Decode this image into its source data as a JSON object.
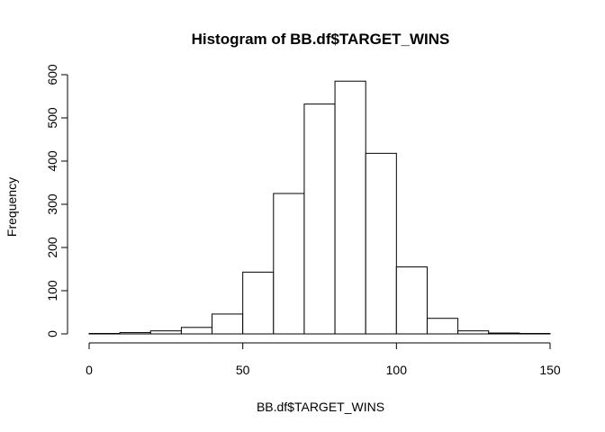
{
  "chart_data": {
    "type": "bar",
    "title": "Histogram of BB.df$TARGET_WINS",
    "xlabel": "BB.df$TARGET_WINS",
    "ylabel": "Frequency",
    "bins": [
      {
        "start": 0,
        "end": 10,
        "count": 1
      },
      {
        "start": 10,
        "end": 20,
        "count": 3
      },
      {
        "start": 20,
        "end": 30,
        "count": 7
      },
      {
        "start": 30,
        "end": 40,
        "count": 15
      },
      {
        "start": 40,
        "end": 50,
        "count": 46
      },
      {
        "start": 50,
        "end": 60,
        "count": 143
      },
      {
        "start": 60,
        "end": 70,
        "count": 325
      },
      {
        "start": 70,
        "end": 80,
        "count": 532
      },
      {
        "start": 80,
        "end": 90,
        "count": 585
      },
      {
        "start": 90,
        "end": 100,
        "count": 418
      },
      {
        "start": 100,
        "end": 110,
        "count": 155
      },
      {
        "start": 110,
        "end": 120,
        "count": 36
      },
      {
        "start": 120,
        "end": 130,
        "count": 7
      },
      {
        "start": 130,
        "end": 140,
        "count": 2
      },
      {
        "start": 140,
        "end": 150,
        "count": 1
      }
    ],
    "xlim": [
      0,
      150
    ],
    "ylim": [
      0,
      600
    ],
    "x_ticks": [
      0,
      50,
      100,
      150
    ],
    "y_ticks": [
      0,
      100,
      200,
      300,
      400,
      500,
      600
    ],
    "grid": false,
    "legend": "none"
  }
}
